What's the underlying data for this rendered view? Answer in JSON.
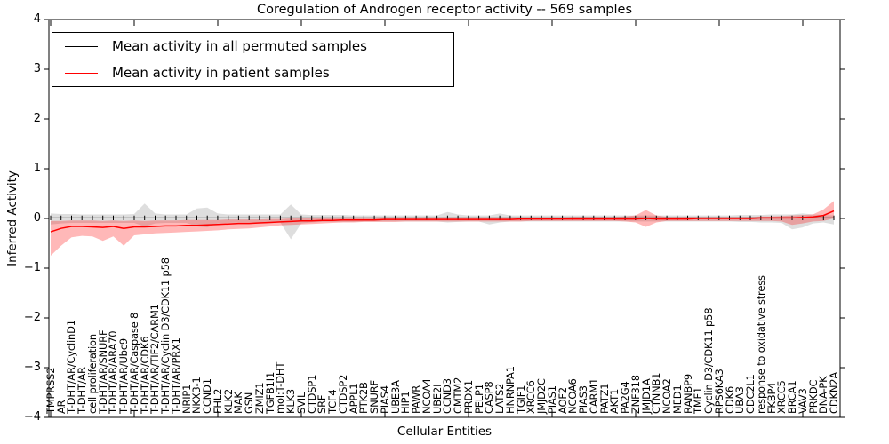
{
  "chart_data": {
    "type": "line",
    "title": "Coregulation of Androgen receptor activity -- 569 samples",
    "xlabel": "Cellular Entities",
    "ylabel": "Inferred Activity",
    "ylim": [
      -4,
      4
    ],
    "yticks": [
      4,
      3,
      2,
      1,
      0,
      -1,
      -2,
      -3,
      -4
    ],
    "ytick_labels": [
      "4",
      "3",
      "2",
      "1",
      "0",
      "−1",
      "−2",
      "−3",
      "−4"
    ],
    "grid": false,
    "legend_position": "upper left",
    "categories": [
      "TMPRSS2",
      "AR",
      "T-DHT/AR/CyclinD1",
      "T-DHT/AR",
      "cell proliferation",
      "T-DHT/AR/SNURF",
      "T-DHT/AR/ARA70",
      "T-DHT/AR/Ubc9",
      "T-DHT/AR/Caspase 8",
      "T-DHT/AR/CDK6",
      "T-DHT/AR/TIF2/CARM1",
      "T-DHT/AR/Cyclin D3/CDK11 p58",
      "T-DHT/AR/PRX1",
      "NRIP1",
      "NKX3-1",
      "CCND1",
      "FHL2",
      "KLK2",
      "MAK",
      "GSN",
      "ZMIZ1",
      "TGFB1I1",
      "mol:T-DHT",
      "KLK3",
      "SVIL",
      "CTDSP1",
      "SRF",
      "TCF4",
      "CTDSP2",
      "APPL1",
      "PTK2B",
      "SNURF",
      "PIAS4",
      "UBE3A",
      "HIP1",
      "PAWR",
      "NCOA4",
      "UBE2I",
      "CCND3",
      "CMTM2",
      "PRDX1",
      "PELP1",
      "CASP8",
      "LATS2",
      "HNRNPA1",
      "TGIF1",
      "XRCC6",
      "JMJD2C",
      "PIAS1",
      "AOF2",
      "NCOA6",
      "PIAS3",
      "CARM1",
      "PATZ1",
      "AKT1",
      "PA2G4",
      "ZNF318",
      "JMJD1A",
      "CTNNB1",
      "NCOA2",
      "MED1",
      "RANBP9",
      "TMF1",
      "Cyclin D3/CDK11 p58",
      "RPS6KA3",
      "CDK6",
      "UBA3",
      "CDC2L1",
      "response to oxidative stress",
      "FKBP4",
      "XRCC5",
      "BRCA1",
      "VAV3",
      "PRKDC",
      "DNA-PK",
      "CDKN2A"
    ],
    "series": [
      {
        "name": "Mean activity in all permuted samples",
        "color": "#000000",
        "marker": "|",
        "values": [
          0.01,
          0.01,
          0.01,
          0.01,
          0.01,
          0.01,
          0.01,
          0.01,
          0.01,
          0.01,
          0.01,
          0.01,
          0.01,
          0.01,
          0.01,
          0.01,
          0.01,
          0.01,
          0.01,
          0.01,
          0.01,
          0.01,
          0.01,
          0.01,
          0.01,
          0.01,
          0.01,
          0.01,
          0.01,
          0.01,
          0.01,
          0.01,
          0.01,
          0.01,
          0.01,
          0.01,
          0.01,
          0.01,
          0.01,
          0.01,
          0.01,
          0.01,
          0.01,
          0.01,
          0.01,
          0.01,
          0.01,
          0.01,
          0.01,
          0.01,
          0.01,
          0.01,
          0.01,
          0.01,
          0.01,
          0.01,
          0.01,
          0.01,
          0.01,
          0.01,
          0.01,
          0.01,
          0.01,
          0.01,
          0.01,
          0.01,
          0.01,
          0.01,
          0.01,
          0.01,
          0.01,
          0.01,
          0.01,
          0.01,
          0.01,
          0.01
        ],
        "band": {
          "upper": [
            0.1,
            0.09,
            0.09,
            0.08,
            0.08,
            0.08,
            0.08,
            0.08,
            0.09,
            0.3,
            0.1,
            0.08,
            0.08,
            0.08,
            0.2,
            0.22,
            0.1,
            0.08,
            0.08,
            0.08,
            0.08,
            0.08,
            0.08,
            0.28,
            0.08,
            0.07,
            0.07,
            0.07,
            0.07,
            0.06,
            0.06,
            0.06,
            0.06,
            0.06,
            0.06,
            0.06,
            0.06,
            0.06,
            0.13,
            0.08,
            0.06,
            0.06,
            0.06,
            0.1,
            0.06,
            0.06,
            0.06,
            0.06,
            0.06,
            0.06,
            0.06,
            0.06,
            0.06,
            0.06,
            0.06,
            0.06,
            0.06,
            0.06,
            0.06,
            0.06,
            0.06,
            0.06,
            0.06,
            0.06,
            0.06,
            0.06,
            0.07,
            0.07,
            0.07,
            0.08,
            0.08,
            0.08,
            0.1,
            0.08,
            0.07,
            0.06
          ],
          "lower": [
            -0.12,
            -0.1,
            -0.09,
            -0.09,
            -0.09,
            -0.09,
            -0.09,
            -0.09,
            -0.09,
            -0.16,
            -0.1,
            -0.09,
            -0.09,
            -0.09,
            -0.16,
            -0.18,
            -0.1,
            -0.09,
            -0.08,
            -0.08,
            -0.08,
            -0.08,
            -0.08,
            -0.42,
            -0.1,
            -0.08,
            -0.07,
            -0.07,
            -0.07,
            -0.07,
            -0.06,
            -0.06,
            -0.06,
            -0.06,
            -0.06,
            -0.06,
            -0.06,
            -0.06,
            -0.08,
            -0.07,
            -0.06,
            -0.06,
            -0.12,
            -0.08,
            -0.06,
            -0.06,
            -0.06,
            -0.06,
            -0.06,
            -0.06,
            -0.06,
            -0.06,
            -0.06,
            -0.06,
            -0.06,
            -0.06,
            -0.06,
            -0.06,
            -0.06,
            -0.06,
            -0.06,
            -0.06,
            -0.06,
            -0.06,
            -0.06,
            -0.06,
            -0.07,
            -0.07,
            -0.08,
            -0.08,
            -0.09,
            -0.22,
            -0.18,
            -0.1,
            -0.08,
            -0.12
          ],
          "color": "#888888",
          "opacity": 0.28
        }
      },
      {
        "name": "Mean activity in patient samples",
        "color": "#ff0000",
        "marker": "none",
        "values": [
          -0.27,
          -0.2,
          -0.16,
          -0.16,
          -0.17,
          -0.18,
          -0.16,
          -0.2,
          -0.17,
          -0.17,
          -0.16,
          -0.15,
          -0.15,
          -0.14,
          -0.14,
          -0.13,
          -0.12,
          -0.11,
          -0.1,
          -0.1,
          -0.09,
          -0.08,
          -0.07,
          -0.06,
          -0.05,
          -0.05,
          -0.04,
          -0.04,
          -0.03,
          -0.03,
          -0.03,
          -0.03,
          -0.02,
          -0.02,
          -0.02,
          -0.02,
          -0.02,
          -0.02,
          -0.02,
          -0.02,
          -0.02,
          -0.02,
          -0.02,
          -0.02,
          -0.02,
          -0.01,
          -0.01,
          -0.01,
          -0.01,
          -0.01,
          -0.01,
          -0.01,
          -0.01,
          -0.01,
          -0.01,
          -0.01,
          -0.01,
          0.0,
          -0.01,
          -0.01,
          -0.01,
          -0.01,
          0.0,
          0.0,
          0.0,
          0.0,
          0.0,
          0.0,
          0.01,
          0.01,
          0.01,
          0.01,
          0.02,
          0.03,
          0.06,
          0.15
        ],
        "band": {
          "upper": [
            -0.05,
            -0.05,
            -0.04,
            -0.04,
            -0.04,
            -0.05,
            -0.04,
            -0.05,
            -0.04,
            -0.05,
            -0.04,
            -0.04,
            -0.04,
            -0.03,
            -0.03,
            -0.03,
            -0.03,
            -0.02,
            -0.02,
            -0.02,
            -0.02,
            -0.01,
            -0.01,
            0.0,
            0.01,
            0.01,
            0.01,
            0.01,
            0.02,
            0.02,
            0.02,
            0.02,
            0.02,
            0.02,
            0.02,
            0.02,
            0.02,
            0.02,
            0.02,
            0.02,
            0.02,
            0.02,
            0.02,
            0.02,
            0.02,
            0.02,
            0.02,
            0.02,
            0.02,
            0.02,
            0.03,
            0.03,
            0.03,
            0.03,
            0.03,
            0.04,
            0.06,
            0.17,
            0.06,
            0.03,
            0.03,
            0.03,
            0.03,
            0.03,
            0.03,
            0.03,
            0.03,
            0.03,
            0.04,
            0.04,
            0.05,
            0.06,
            0.07,
            0.08,
            0.18,
            0.35
          ],
          "lower": [
            -0.75,
            -0.55,
            -0.38,
            -0.35,
            -0.36,
            -0.45,
            -0.36,
            -0.55,
            -0.34,
            -0.32,
            -0.3,
            -0.29,
            -0.28,
            -0.27,
            -0.26,
            -0.25,
            -0.24,
            -0.22,
            -0.21,
            -0.2,
            -0.18,
            -0.16,
            -0.14,
            -0.13,
            -0.12,
            -0.11,
            -0.1,
            -0.09,
            -0.08,
            -0.08,
            -0.07,
            -0.07,
            -0.07,
            -0.07,
            -0.06,
            -0.06,
            -0.06,
            -0.06,
            -0.06,
            -0.06,
            -0.06,
            -0.06,
            -0.06,
            -0.06,
            -0.06,
            -0.06,
            -0.05,
            -0.05,
            -0.05,
            -0.05,
            -0.05,
            -0.05,
            -0.05,
            -0.05,
            -0.05,
            -0.06,
            -0.08,
            -0.17,
            -0.08,
            -0.05,
            -0.05,
            -0.05,
            -0.05,
            -0.05,
            -0.05,
            -0.05,
            -0.05,
            -0.05,
            -0.05,
            -0.05,
            -0.06,
            -0.13,
            -0.1,
            -0.06,
            -0.05,
            0.0
          ],
          "color": "#ff0000",
          "opacity": 0.28
        }
      }
    ]
  }
}
